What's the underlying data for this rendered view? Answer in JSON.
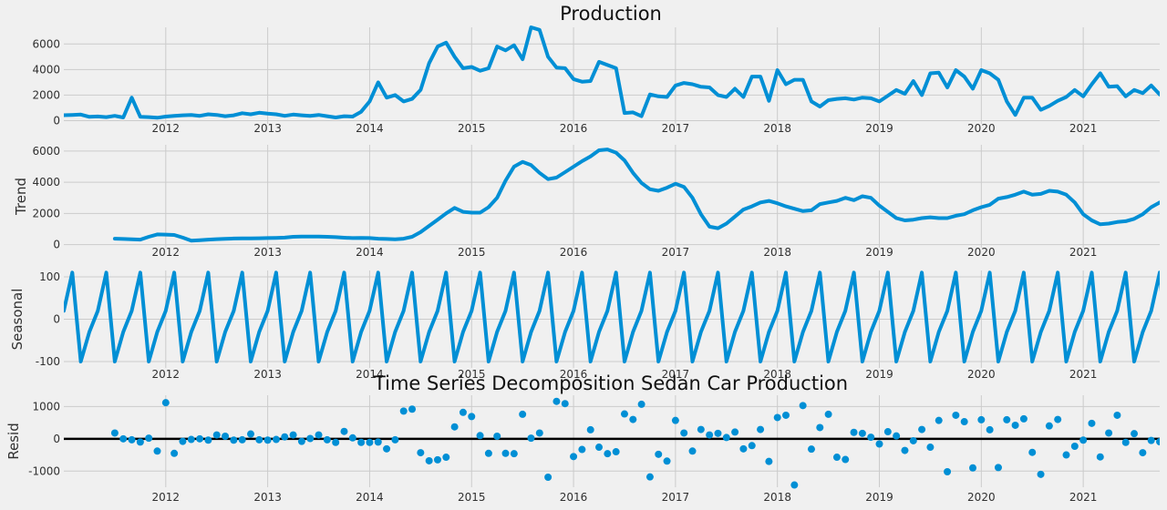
{
  "figure": {
    "title": "Production",
    "suptitle": "Time Series Decomposition Sedan Car Production"
  },
  "colors": {
    "series": "#008fd5",
    "background": "#f0f0f0",
    "grid": "#cbcbcb"
  },
  "chart_data": [
    {
      "type": "line",
      "ylabel": "",
      "x_ticks": [
        "2012",
        "2013",
        "2014",
        "2015",
        "2016",
        "2017",
        "2018",
        "2019",
        "2020",
        "2021"
      ],
      "yticks": [
        0,
        2000,
        4000,
        6000
      ],
      "ylim": [
        -250,
        7300
      ],
      "xlim": [
        "2011-01",
        "2021-10"
      ],
      "grid": true,
      "start": "2011-01",
      "series": [
        {
          "values": [
            430,
            450,
            480,
            300,
            330,
            280,
            380,
            250,
            1800,
            300,
            280,
            230,
            320,
            380,
            420,
            450,
            380,
            500,
            450,
            350,
            420,
            580,
            500,
            620,
            550,
            500,
            380,
            480,
            420,
            380,
            450,
            350,
            250,
            350,
            320,
            700,
            1500,
            3000,
            1800,
            2000,
            1500,
            1700,
            2400,
            4500,
            5800,
            6100,
            5000,
            4100,
            4200,
            3900,
            4100,
            5800,
            5500,
            5900,
            4800,
            7300,
            7100,
            5000,
            4150,
            4100,
            3250,
            3050,
            3100,
            4600,
            4350,
            4100,
            600,
            650,
            350,
            2050,
            1900,
            1850,
            2750,
            2950,
            2850,
            2650,
            2600,
            2000,
            1850,
            2500,
            1850,
            3450,
            3450,
            1550,
            3950,
            2850,
            3200,
            3200,
            1500,
            1100,
            1600,
            1700,
            1750,
            1650,
            1800,
            1750,
            1500,
            1950,
            2400,
            2100,
            3100,
            2000,
            3700,
            3750,
            2600,
            3950,
            3450,
            2500,
            3950,
            3700,
            3200,
            1500,
            450,
            1800,
            1800,
            850,
            1150,
            1550,
            1850,
            2400,
            1900,
            2850,
            3700,
            2650,
            2700,
            1900,
            2400,
            2150,
            2750,
            2050
          ]
        }
      ]
    },
    {
      "type": "line",
      "ylabel": "Trend",
      "x_ticks": [
        "2012",
        "2013",
        "2014",
        "2015",
        "2016",
        "2017",
        "2018",
        "2019",
        "2020",
        "2021"
      ],
      "yticks": [
        0,
        2000,
        4000,
        6000
      ],
      "ylim": [
        -200,
        6400
      ],
      "xlim": [
        "2011-01",
        "2021-10"
      ],
      "grid": true,
      "start": "2011-07",
      "series": [
        {
          "values": [
            380,
            360,
            340,
            320,
            500,
            650,
            640,
            620,
            450,
            250,
            280,
            320,
            350,
            370,
            390,
            400,
            400,
            410,
            420,
            430,
            450,
            500,
            520,
            520,
            510,
            500,
            480,
            440,
            420,
            430,
            420,
            380,
            360,
            340,
            380,
            500,
            800,
            1200,
            1600,
            2000,
            2350,
            2100,
            2050,
            2050,
            2400,
            3000,
            4100,
            5000,
            5300,
            5100,
            4600,
            4200,
            4300,
            4650,
            5000,
            5350,
            5650,
            6050,
            6100,
            5900,
            5400,
            4600,
            3950,
            3550,
            3450,
            3650,
            3900,
            3700,
            3000,
            1950,
            1150,
            1050,
            1350,
            1800,
            2250,
            2450,
            2700,
            2800,
            2650,
            2450,
            2300,
            2150,
            2200,
            2600,
            2700,
            2800,
            3000,
            2850,
            3100,
            3000,
            2500,
            2100,
            1700,
            1550,
            1600,
            1700,
            1750,
            1700,
            1700,
            1850,
            1950,
            2200,
            2400,
            2550,
            2950,
            3050,
            3200,
            3400,
            3200,
            3250,
            3450,
            3400,
            3200,
            2700,
            1950,
            1550,
            1300,
            1350,
            1450,
            1500,
            1650,
            1950,
            2400,
            2700,
            2850,
            2850,
            2600,
            2350,
            2300,
            2300
          ]
        }
      ]
    },
    {
      "type": "line",
      "ylabel": "Seasonal",
      "x_ticks": [
        "2012",
        "2013",
        "2014",
        "2015",
        "2016",
        "2017",
        "2018",
        "2019",
        "2020",
        "2021"
      ],
      "yticks": [
        -100,
        0,
        100
      ],
      "ylim": [
        -115,
        115
      ],
      "xlim": [
        "2011-01",
        "2021-10"
      ],
      "grid": true,
      "start": "2011-01",
      "series": [
        {
          "values": [
            20,
            110,
            -100,
            -30,
            20,
            110,
            -100,
            -30,
            20,
            110,
            -100,
            -30,
            20,
            110,
            -100,
            -30,
            20,
            110,
            -100,
            -30,
            20,
            110,
            -100,
            -30,
            20,
            110,
            -100,
            -30,
            20,
            110,
            -100,
            -30,
            20,
            110,
            -100,
            -30,
            20,
            110,
            -100,
            -30,
            20,
            110,
            -100,
            -30,
            20,
            110,
            -100,
            -30,
            20,
            110,
            -100,
            -30,
            20,
            110,
            -100,
            -30,
            20,
            110,
            -100,
            -30,
            20,
            110,
            -100,
            -30,
            20,
            110,
            -100,
            -30,
            20,
            110,
            -100,
            -30,
            20,
            110,
            -100,
            -30,
            20,
            110,
            -100,
            -30,
            20,
            110,
            -100,
            -30,
            20,
            110,
            -100,
            -30,
            20,
            110,
            -100,
            -30,
            20,
            110,
            -100,
            -30,
            20,
            110,
            -100,
            -30,
            20,
            110,
            -100,
            -30,
            20,
            110,
            -100,
            -30,
            20,
            110,
            -100,
            -30,
            20,
            110,
            -100,
            -30,
            20,
            110,
            -100,
            -30,
            20,
            110,
            -100,
            -30,
            20,
            110,
            -100,
            -30,
            20,
            110,
            -100,
            -30,
            20
          ]
        }
      ]
    },
    {
      "type": "scatter",
      "ylabel": "Resid",
      "x_ticks": [
        "2012",
        "2013",
        "2014",
        "2015",
        "2016",
        "2017",
        "2018",
        "2019",
        "2020",
        "2021"
      ],
      "yticks": [
        -1000,
        0,
        1000
      ],
      "ylim": [
        -1500,
        1350
      ],
      "xlim": [
        "2011-01",
        "2021-10"
      ],
      "grid": true,
      "zero_line": true,
      "start": "2011-07",
      "series": [
        {
          "values": [
            180,
            0,
            -30,
            -100,
            20,
            -380,
            1120,
            -450,
            -80,
            -20,
            0,
            -40,
            120,
            80,
            -40,
            -30,
            150,
            -30,
            -40,
            -20,
            60,
            120,
            -80,
            10,
            120,
            -30,
            -110,
            230,
            30,
            -110,
            -110,
            -100,
            -310,
            -30,
            860,
            920,
            -430,
            -680,
            -650,
            -570,
            370,
            820,
            690,
            100,
            -450,
            80,
            -450,
            -460,
            760,
            20,
            180,
            -1190,
            1160,
            1090,
            -550,
            -330,
            280,
            -260,
            -460,
            -400,
            770,
            600,
            1070,
            -1180,
            -480,
            -690,
            570,
            180,
            -380,
            290,
            120,
            170,
            40,
            210,
            -310,
            -210,
            290,
            -700,
            660,
            730,
            -1430,
            1030,
            -320,
            350,
            760,
            -570,
            -640,
            200,
            170,
            50,
            -160,
            220,
            90,
            -360,
            -60,
            290,
            -260,
            570,
            -1020,
            730,
            530,
            -900,
            590,
            280,
            -890,
            590,
            420,
            620,
            -420,
            -1100,
            400,
            600,
            -500,
            -230,
            -40,
            480,
            -560,
            180,
            730,
            -110,
            160,
            -430,
            -50,
            -90
          ]
        }
      ]
    }
  ]
}
